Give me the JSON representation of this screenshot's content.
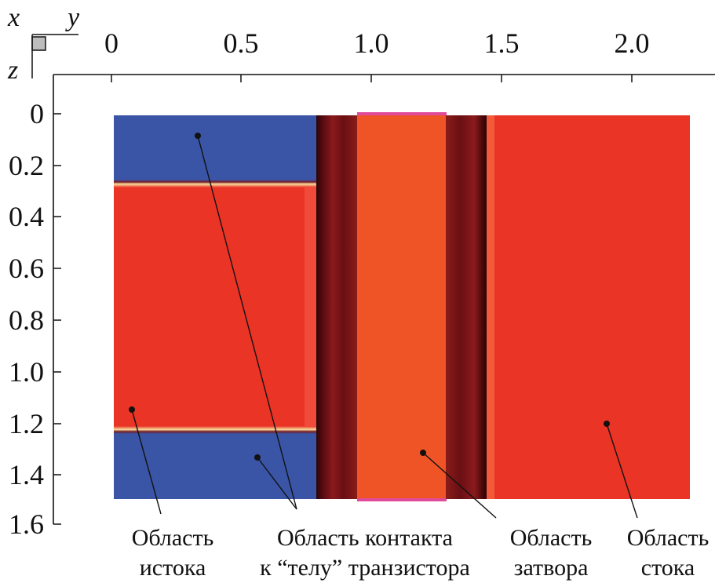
{
  "axes": {
    "x_letter": "x",
    "y_letter": "y",
    "z_letter": "z",
    "top_ticks": [
      "0",
      "0.5",
      "1.0",
      "1.5",
      "2.0"
    ],
    "left_ticks": [
      "0",
      "0.2",
      "0.4",
      "0.6",
      "0.8",
      "1.0",
      "1.2",
      "1.4",
      "1.6"
    ]
  },
  "regions": {
    "source": {
      "line1": "Область",
      "line2": "истока"
    },
    "body_contact": {
      "line1": "Область контакта",
      "line2": "к “телу” транзистора"
    },
    "gate": {
      "line1": "Область",
      "line2": "затвора"
    },
    "drain": {
      "line1": "Область",
      "line2": "стока"
    }
  },
  "colors": {
    "blue_region": "#3a55a6",
    "red_region": "#ea3426",
    "orange_gate": "#ee5425",
    "dark_edge": "#5a0b10",
    "magenta_edge": "#e04a9a"
  }
}
